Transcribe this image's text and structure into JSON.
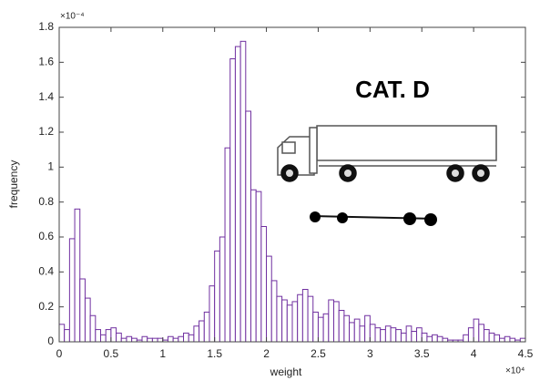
{
  "chart_data": {
    "type": "histogram",
    "x_label": "weight",
    "y_label": "frequency",
    "x_multiplier": "×10⁴",
    "y_multiplier": "×10⁻⁴",
    "annotation": "CAT. D",
    "color": "#7030a0",
    "bins": [
      0,
      0.05,
      0.1,
      0.15,
      0.2,
      0.25,
      0.3,
      0.35,
      0.4,
      0.45,
      0.5,
      0.55,
      0.6,
      0.65,
      0.7,
      0.75,
      0.8,
      0.85,
      0.9,
      0.95,
      1,
      1.05,
      1.1,
      1.15,
      1.2,
      1.25,
      1.3,
      1.35,
      1.4,
      1.45,
      1.5,
      1.55,
      1.6,
      1.65,
      1.7,
      1.75,
      1.8,
      1.85,
      1.9,
      1.95,
      2,
      2.05,
      2.1,
      2.15,
      2.2,
      2.25,
      2.3,
      2.35,
      2.4,
      2.45,
      2.5,
      2.55,
      2.6,
      2.65,
      2.7,
      2.75,
      2.8,
      2.85,
      2.9,
      2.95,
      3,
      3.05,
      3.1,
      3.15,
      3.2,
      3.25,
      3.3,
      3.35,
      3.4,
      3.45,
      3.5,
      3.55,
      3.6,
      3.65,
      3.7,
      3.75,
      3.8,
      3.85,
      3.9,
      3.95,
      4,
      4.05,
      4.1,
      4.15,
      4.2,
      4.25,
      4.3,
      4.35,
      4.4,
      4.45,
      4.5
    ],
    "values": [
      0.1,
      0.07,
      0.59,
      0.76,
      0.36,
      0.25,
      0.15,
      0.07,
      0.04,
      0.07,
      0.08,
      0.05,
      0.02,
      0.03,
      0.02,
      0.01,
      0.03,
      0.02,
      0.02,
      0.02,
      0.01,
      0.03,
      0.02,
      0.03,
      0.05,
      0.04,
      0.09,
      0.12,
      0.17,
      0.32,
      0.52,
      0.6,
      1.11,
      1.62,
      1.69,
      1.72,
      1.32,
      0.87,
      0.86,
      0.66,
      0.49,
      0.35,
      0.26,
      0.24,
      0.21,
      0.23,
      0.27,
      0.3,
      0.26,
      0.17,
      0.14,
      0.16,
      0.24,
      0.23,
      0.18,
      0.15,
      0.11,
      0.13,
      0.09,
      0.15,
      0.1,
      0.08,
      0.07,
      0.09,
      0.08,
      0.07,
      0.05,
      0.09,
      0.06,
      0.08,
      0.05,
      0.03,
      0.04,
      0.03,
      0.02,
      0.01,
      0.01,
      0.01,
      0.04,
      0.08,
      0.13,
      0.1,
      0.07,
      0.05,
      0.04,
      0.02,
      0.03,
      0.02,
      0.01,
      0.02
    ],
    "xlim": [
      0,
      4.5
    ],
    "ylim": [
      0,
      1.8
    ],
    "xticks": [
      0,
      0.5,
      1,
      1.5,
      2,
      2.5,
      3,
      3.5,
      4,
      4.5
    ],
    "yticks": [
      0,
      0.2,
      0.4,
      0.6,
      0.8,
      1,
      1.2,
      1.4,
      1.6,
      1.8
    ]
  }
}
